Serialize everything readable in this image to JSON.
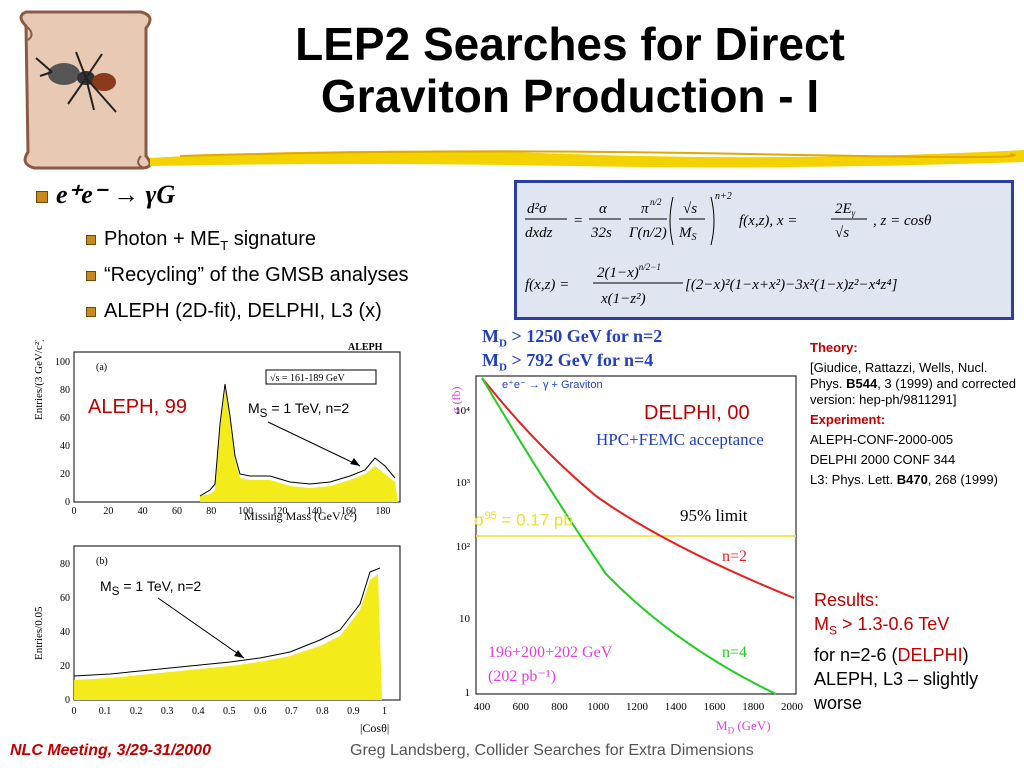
{
  "title": {
    "line1": "LEP2 Searches for Direct",
    "line2": "Graviton Production - I"
  },
  "bullets": {
    "main": "e⁺e⁻ → γG",
    "sub": [
      "Photon + ME",
      "“Recycling” of the GMSB analyses",
      "ALEPH (2D-fit), DELPHI, L3 (x)"
    ],
    "sub0_suffix_sub": "T",
    "sub0_suffix": " signature"
  },
  "formula": {
    "line1": "d²σ/dxdz = α/32s · π^{n/2}/Γ(n/2) · (√s/M_S)^{n+2} f(x,z),  x = 2Eγ/√s,  z = cosθ",
    "line2": "f(x,z) = 2(1−x)^{n/2−1}/(x(1−z²)) [(2−x)²(1−x+x²) − 3x²(1−x)z² − x⁴z⁴]"
  },
  "aleph_plot": {
    "label": "ALEPH, 99",
    "experiment": "ALEPH",
    "panel_a": "(a)",
    "panel_b": "(b)",
    "sqrt_s": "√s = 161-189 GeV",
    "ylabel_a": "Entries/(3 GeV/c²)",
    "ylabel_b": "Entries/0.05",
    "xlabel_a": "Missing Mass (GeV/c²)",
    "xlabel_b": "|Cosθ|",
    "ms_a": "M",
    "ms_a_sub": "S",
    "ms_a_rest": " = 1 TeV, n=2",
    "ms_b": "M",
    "ms_b_sub": "S",
    "ms_b_rest": " = 1 TeV, n=2",
    "ticks_a_y": [
      "0",
      "20",
      "40",
      "60",
      "80",
      "100"
    ],
    "ticks_a_x": [
      "0",
      "20",
      "40",
      "60",
      "80",
      "100",
      "120",
      "140",
      "160",
      "180"
    ],
    "ticks_b_y": [
      "0",
      "20",
      "40",
      "60",
      "80"
    ],
    "ticks_b_x": [
      "0",
      "0.1",
      "0.2",
      "0.3",
      "0.4",
      "0.5",
      "0.6",
      "0.7",
      "0.8",
      "0.9",
      "1"
    ]
  },
  "delphi_plot": {
    "label": "DELPHI, 00",
    "md1": "M",
    "md1_sub": "D",
    "md1_rest": " > 1250 GeV   for   n=2",
    "md2": "M",
    "md2_sub": "D",
    "md2_rest": " >  792 GeV   for   n=4",
    "process": "e⁺e⁻ → γ + Graviton",
    "acceptance": "HPC+FEMC acceptance",
    "limit": "95% limit",
    "sigma": "σ",
    "sigma_sup": "95",
    "sigma_rest": " = 0.17 pb",
    "n2": "n=2",
    "n4": "n=4",
    "energies": "196+200+202 GeV",
    "lumi": "(202 pb⁻¹)",
    "ylabel": "σ (fb)",
    "xlabel": "M",
    "xlabel_sub": "D",
    "xlabel_rest": " (GeV)",
    "ticks_y": [
      "10⁴",
      "10³",
      "10²",
      "10",
      "1"
    ],
    "ticks_x": [
      "400",
      "600",
      "800",
      "1000",
      "1200",
      "1400",
      "1600",
      "1800",
      "2000"
    ]
  },
  "notes": {
    "theory_head": "Theory:",
    "theory_body": "[Giudice, Rattazzi, Wells, Nucl. Phys. ",
    "theory_bold": "B544",
    "theory_rest": ", 3 (1999) and corrected version: hep-ph/9811291]",
    "exp_head": "Experiment:",
    "exp1": "ALEPH-CONF-2000-005",
    "exp2": "DELPHI 2000 CONF 344",
    "exp3a": "L3: Phys. Lett. ",
    "exp3b": "B470",
    "exp3c": ", 268 (1999)"
  },
  "results": {
    "head": "Results:",
    "line1a": "M",
    "line1sub": "S",
    "line1b": " > 1.3-0.6 TeV",
    "line2a": "for n=2-6 (",
    "line2b": "DELPHI",
    "line2c": ")",
    "line3": "ALEPH, L3 – slightly worse"
  },
  "footer": {
    "left": "NLC Meeting, 3/29-31/2000",
    "right": "Greg Landsberg, Collider Searches for Extra Dimensions"
  }
}
